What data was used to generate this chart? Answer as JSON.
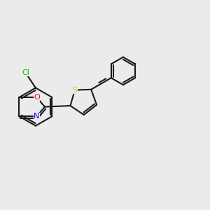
{
  "background_color": "#ebebeb",
  "bond_color": "#1a1a1a",
  "bond_width": 1.5,
  "atom_colors": {
    "Cl": "#00cc00",
    "N": "#0000ff",
    "O_oxazole": "#ff0000",
    "S": "#cccc00",
    "C": "#1a1a1a"
  },
  "atom_fontsizes": {
    "Cl": 9,
    "N": 9,
    "O": 9,
    "S": 9
  },
  "figsize": [
    3.0,
    3.0
  ],
  "dpi": 100
}
